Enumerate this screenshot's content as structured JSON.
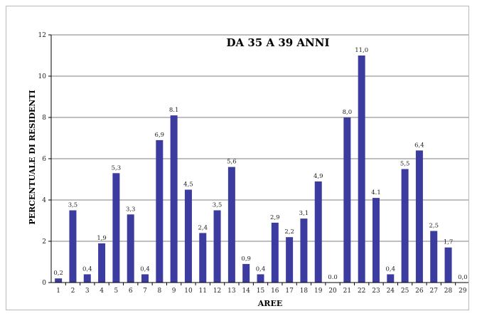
{
  "chart_data": {
    "type": "bar",
    "title": "DA 35 A 39 ANNI",
    "xlabel": "AREE",
    "ylabel": "PERCENTUALE DI RESIDENTI",
    "ylim": [
      0,
      12
    ],
    "yticks": [
      0,
      2,
      4,
      6,
      8,
      10,
      12
    ],
    "grid": true,
    "bar_color": "#3c3ca0",
    "categories": [
      "1",
      "2",
      "3",
      "4",
      "5",
      "6",
      "7",
      "8",
      "9",
      "10",
      "11",
      "12",
      "13",
      "14",
      "15",
      "16",
      "17",
      "18",
      "19",
      "20",
      "21",
      "22",
      "23",
      "24",
      "25",
      "26",
      "27",
      "28",
      "29"
    ],
    "values": [
      0.2,
      3.5,
      0.4,
      1.9,
      5.3,
      3.3,
      0.4,
      6.9,
      8.1,
      4.5,
      2.4,
      3.5,
      5.6,
      0.9,
      0.4,
      2.9,
      2.2,
      3.1,
      4.9,
      0.0,
      8.0,
      11.0,
      4.1,
      0.4,
      5.5,
      6.4,
      2.5,
      1.7,
      0.0
    ],
    "data_labels": [
      "0,2",
      "3,5",
      "0,4",
      "1,9",
      "5,3",
      "3,3",
      "0,4",
      "6,9",
      "8.1",
      "4,5",
      "2,4",
      "3,5",
      "5,6",
      "0,9",
      "0,4",
      "2,9",
      "2,2",
      "3,1",
      "4,9",
      "0.0",
      "8,0",
      "11,0",
      "4.1",
      "0,4",
      "5,5",
      "6,4",
      "2,5",
      "1,7",
      "0,0"
    ]
  }
}
